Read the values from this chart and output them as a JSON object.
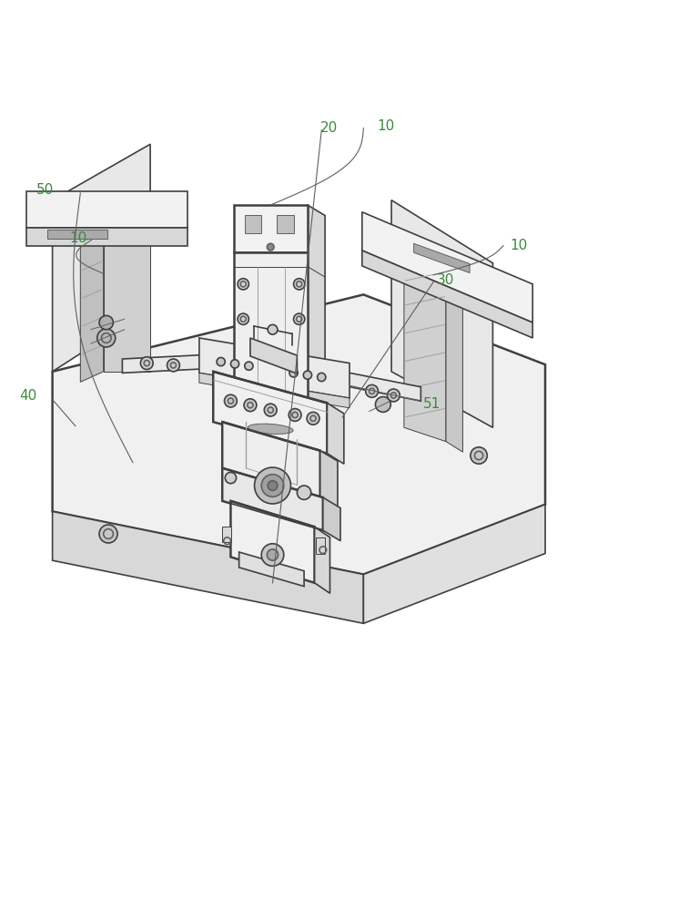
{
  "bg_color": "#ffffff",
  "line_color": "#404040",
  "light_gray": "#c8c8c8",
  "mid_gray": "#a0a0a0",
  "dark_gray": "#606060",
  "label_color_green": "#3a8a3a",
  "figsize": [
    7.68,
    10.0
  ],
  "dpi": 100
}
